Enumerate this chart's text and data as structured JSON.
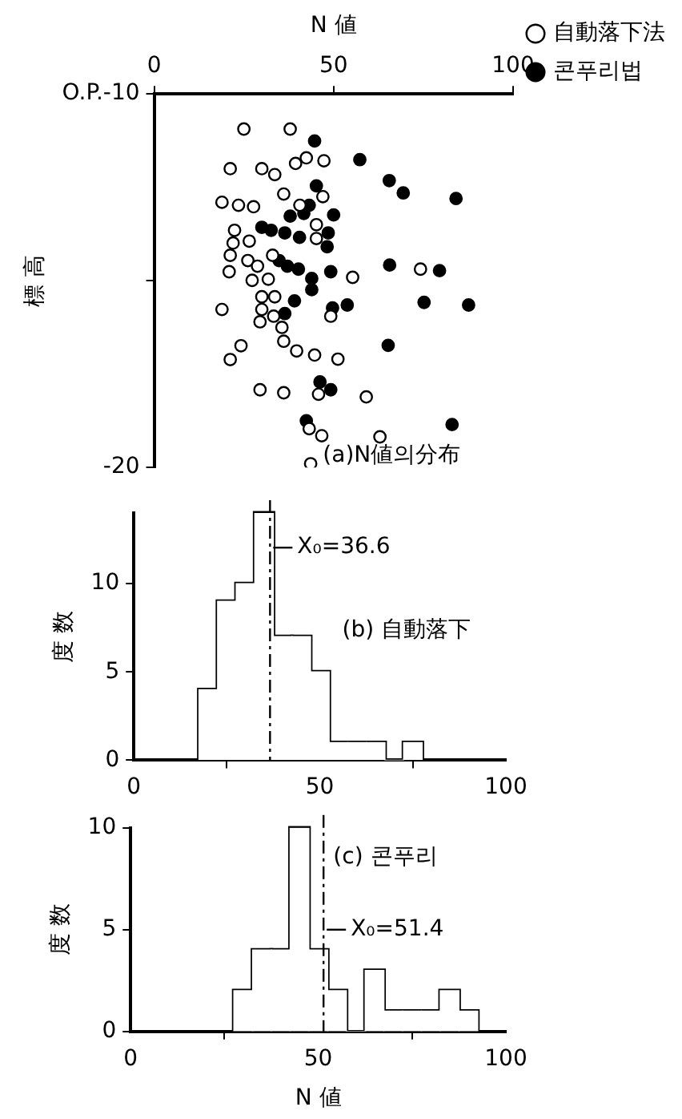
{
  "chart_data": [
    {
      "type": "scatter",
      "xlabel": "N 値",
      "ylabel": "標 高",
      "legend": "top right",
      "marker": "circle",
      "annotations": [
        "(a)N値의分布"
      ],
      "xlim": [
        0,
        100
      ],
      "xticks": [
        0,
        50,
        100
      ],
      "ylim": [
        -20,
        -10
      ],
      "yticks": [
        {
          "value": -10,
          "label": "O.P.-10"
        },
        {
          "value": -15,
          "label": null
        },
        -20
      ],
      "series": [
        {
          "name": "自動落下法",
          "color": "#ffffff",
          "x": [
            25,
            37.9,
            21.2,
            30,
            33.6,
            39.4,
            42.4,
            47.3,
            36.1,
            18.9,
            23.5,
            27.7,
            47,
            40.6,
            22.4,
            22,
            26.5,
            21.2,
            26.1,
            28.8,
            20.9,
            27.3,
            31.8,
            45.2,
            45.2,
            33,
            55.3,
            74.2,
            18.9,
            30,
            33.6,
            30,
            33.3,
            29.5,
            35.6,
            49.2,
            24.2,
            21.2,
            36.1,
            39.7,
            44.7,
            51.2,
            29.5,
            36.1,
            45.8,
            59.1,
            43.2,
            46.7,
            62.9,
            43.6
          ],
          "values": [
            -10.94,
            -10.94,
            -12.0,
            -12.0,
            -12.16,
            -11.86,
            -11.71,
            -11.79,
            -12.68,
            -12.9,
            -12.98,
            -13.02,
            -12.75,
            -12.98,
            -13.65,
            -13.99,
            -13.94,
            -14.32,
            -14.46,
            -14.61,
            -14.76,
            -14.99,
            -14.96,
            -13.87,
            -13.5,
            -14.32,
            -14.91,
            -14.69,
            -15.77,
            -15.43,
            -15.43,
            -15.77,
            -15.95,
            -16.1,
            -16.25,
            -15.95,
            -16.74,
            -17.11,
            -16.62,
            -16.88,
            -16.99,
            -17.1,
            -17.92,
            -18.0,
            -18.04,
            -18.11,
            -18.96,
            -19.15,
            -19.18,
            -19.9
          ]
        },
        {
          "name": "콘푸리법",
          "color": "#000000",
          "x": [
            44.7,
            57.3,
            65.5,
            69.4,
            84.1,
            45.2,
            43.2,
            41.7,
            50,
            37.9,
            30,
            32.6,
            36.4,
            40.5,
            48.5,
            48.2,
            34.8,
            37.1,
            40.2,
            49.2,
            43.9,
            43.9,
            65.6,
            79.5,
            39.1,
            36.4,
            49.7,
            53.8,
            75.2,
            87.6,
            65.2,
            46.2,
            49.2,
            42.4,
            83
          ],
          "values": [
            -11.26,
            -11.76,
            -12.32,
            -12.65,
            -12.8,
            -12.46,
            -12.98,
            -13.2,
            -13.24,
            -13.27,
            -13.57,
            -13.65,
            -13.72,
            -13.84,
            -13.72,
            -14.09,
            -14.46,
            -14.61,
            -14.69,
            -14.76,
            -14.94,
            -15.24,
            -14.58,
            -14.73,
            -15.54,
            -15.88,
            -15.73,
            -15.65,
            -15.58,
            -15.65,
            -16.73,
            -17.71,
            -17.92,
            -18.75,
            -18.85
          ]
        }
      ]
    },
    {
      "type": "histogram",
      "color": "#ffffff",
      "ylabel": "度 数",
      "annotations": [
        "(b) 自動落下"
      ],
      "bins": [
        17.5,
        22.5,
        27.5,
        32.5,
        37.5,
        42.5,
        47.5,
        52.5,
        57.5,
        62.5,
        67.5,
        72.5,
        77.5
      ],
      "values": [
        4,
        9,
        10,
        14,
        7,
        7,
        5,
        1,
        1,
        1,
        0,
        1
      ],
      "xlim": [
        0,
        100
      ],
      "xticks": [
        0,
        50,
        100
      ],
      "ylim": [
        0,
        14
      ],
      "yticks": [
        0,
        5,
        10
      ],
      "ref_lines": [
        {
          "axis": "x",
          "value": 36.6,
          "label": "X₀=36.6",
          "line_style": "dashdot"
        }
      ]
    },
    {
      "type": "histogram",
      "color": "#ffffff",
      "xlabel": "N 値",
      "ylabel": "度 数",
      "annotations": [
        "(c) 콘푸리"
      ],
      "bins": [
        27.5,
        32.5,
        37.5,
        42.5,
        47.5,
        52.5,
        57.5,
        62.5,
        67.5,
        72.5,
        77.5,
        82.5,
        87.5,
        92.5
      ],
      "values": [
        2,
        4,
        4,
        10,
        4,
        2,
        0,
        3,
        1,
        1,
        1,
        2,
        1
      ],
      "xlim": [
        0,
        100
      ],
      "xticks": [
        0,
        50,
        100
      ],
      "ylim": [
        0,
        10
      ],
      "yticks": [
        0,
        5,
        10
      ],
      "ref_lines": [
        {
          "axis": "x",
          "value": 51.4,
          "label": "X₀=51.4",
          "line_style": "dashdot"
        }
      ]
    }
  ]
}
